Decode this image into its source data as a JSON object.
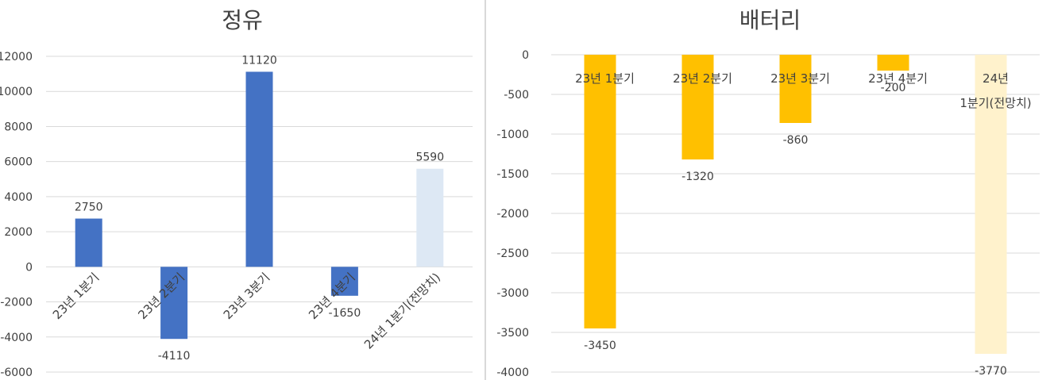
{
  "chart_data": [
    {
      "type": "bar",
      "title": "정유",
      "xlabel": "",
      "ylabel": "",
      "ylim": [
        -6000,
        12000
      ],
      "yticks": [
        -6000,
        -4000,
        -2000,
        0,
        2000,
        4000,
        6000,
        8000,
        10000,
        12000
      ],
      "categories": [
        "23년 1분기",
        "23년 2분기",
        "23년 3분기",
        "23년 4분기",
        "24년 1분기(전망치)"
      ],
      "values": [
        2750,
        -4110,
        11120,
        -1650,
        5590
      ],
      "colors": [
        "#4472c4",
        "#4472c4",
        "#4472c4",
        "#4472c4",
        "#dde8f4"
      ],
      "grid": true,
      "category_label_style": "rotated"
    },
    {
      "type": "bar",
      "title": "배터리",
      "xlabel": "",
      "ylabel": "",
      "ylim": [
        -4000,
        0
      ],
      "yticks": [
        -4000,
        -3500,
        -3000,
        -2500,
        -2000,
        -1500,
        -1000,
        -500,
        0
      ],
      "categories": [
        "23년 1분기",
        "23년 2분기",
        "23년 3분기",
        "23년 4분기",
        "24년 1분기(전망치)"
      ],
      "category_lines": [
        [
          "23년 1분기"
        ],
        [
          "23년 2분기"
        ],
        [
          "23년 3분기"
        ],
        [
          "23년 4분기"
        ],
        [
          "24년",
          "1분기(전망치)"
        ]
      ],
      "values": [
        -3450,
        -1320,
        -860,
        -200,
        -3770
      ],
      "colors": [
        "#ffc000",
        "#ffc000",
        "#ffc000",
        "#ffc000",
        "#fff2cc"
      ],
      "grid": true,
      "category_label_style": "horizontal"
    }
  ]
}
